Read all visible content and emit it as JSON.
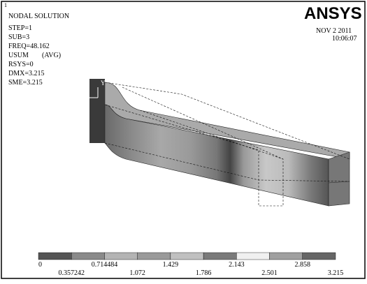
{
  "window_number": "1",
  "header": {
    "title": "NODAL SOLUTION",
    "lines": [
      "STEP=1",
      "SUB=3",
      "FREQ=48.162",
      "USUM",
      "(AVG)",
      "RSYS=0",
      "DMX=3.215",
      "SME=3.215"
    ],
    "logo": "ANSYS",
    "date": "NOV  2 2011",
    "time": "10:06:07"
  },
  "axis_label": "Y",
  "legend": {
    "colors": [
      "#555555",
      "#8a8a8a",
      "#b4b4b4",
      "#9a9a9a",
      "#c0c0c0",
      "#7a7a7a",
      "#f0f0f0",
      "#a0a0a0",
      "#666666"
    ],
    "labels": [
      "0",
      "0.357242",
      "0.714484",
      "1.072",
      "1.429",
      "1.786",
      "2.143",
      "2.501",
      "2.858",
      "3.215"
    ]
  }
}
